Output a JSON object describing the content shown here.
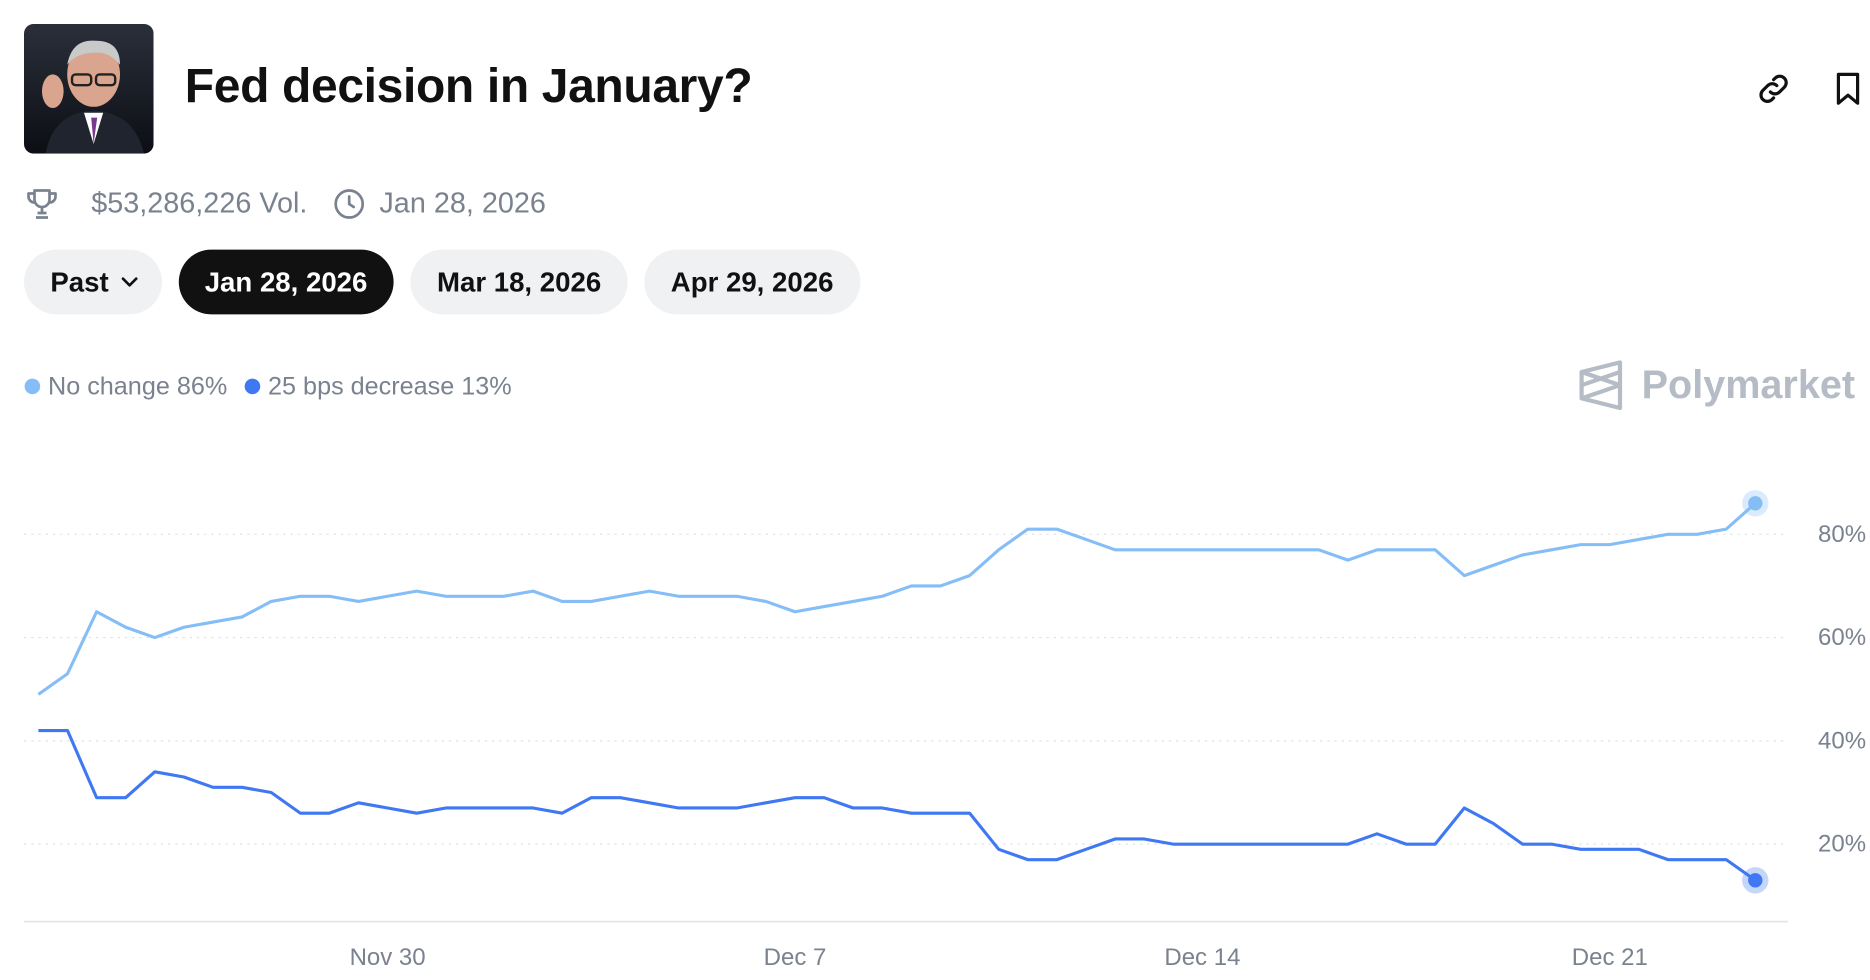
{
  "header": {
    "title": "Fed decision in January?",
    "volume": "$53,286,226 Vol.",
    "end_date": "Jan 28, 2026"
  },
  "tabs": [
    "Past",
    "Jan 28, 2026",
    "Mar 18, 2026",
    "Apr 29, 2026"
  ],
  "active_tab": 1,
  "brand": "Polymarket",
  "chart_data": {
    "type": "line",
    "categories": [
      null,
      null,
      null,
      null,
      null,
      null,
      null,
      null,
      null,
      null,
      null,
      null,
      "Nov 30",
      null,
      null,
      null,
      null,
      null,
      null,
      null,
      null,
      null,
      null,
      null,
      null,
      null,
      "Dec 7",
      null,
      null,
      null,
      null,
      null,
      null,
      null,
      null,
      null,
      null,
      null,
      null,
      null,
      "Dec 14",
      null,
      null,
      null,
      null,
      null,
      null,
      null,
      null,
      null,
      null,
      null,
      null,
      null,
      "Dec 21",
      null,
      null,
      null,
      null,
      null
    ],
    "series": [
      {
        "name": "No change 86%",
        "color": "#85bdf7",
        "values": [
          49,
          53,
          65,
          62,
          60,
          62,
          63,
          64,
          67,
          68,
          68,
          67,
          68,
          69,
          68,
          68,
          68,
          69,
          67,
          67,
          68,
          69,
          68,
          68,
          68,
          67,
          65,
          66,
          67,
          68,
          70,
          70,
          72,
          77,
          81,
          81,
          79,
          77,
          77,
          77,
          77,
          77,
          77,
          77,
          77,
          75,
          77,
          77,
          77,
          72,
          74,
          76,
          77,
          78,
          78,
          79,
          80,
          80,
          81,
          86
        ]
      },
      {
        "name": "25 bps decrease 13%",
        "color": "#3f78f2",
        "values": [
          42,
          42,
          29,
          29,
          34,
          33,
          31,
          31,
          30,
          26,
          26,
          28,
          27,
          26,
          27,
          27,
          27,
          27,
          26,
          29,
          29,
          28,
          27,
          27,
          27,
          28,
          29,
          29,
          27,
          27,
          26,
          26,
          26,
          19,
          17,
          17,
          19,
          21,
          21,
          20,
          20,
          20,
          20,
          20,
          20,
          20,
          22,
          20,
          20,
          27,
          24,
          20,
          20,
          19,
          19,
          19,
          17,
          17,
          17,
          13
        ]
      }
    ],
    "ylim": [
      5,
      94
    ],
    "yticks": [
      {
        "value": 20,
        "label": "20%"
      },
      {
        "value": 40,
        "label": "40%"
      },
      {
        "value": 60,
        "label": "60%"
      },
      {
        "value": 80,
        "label": "80%"
      }
    ],
    "grid": true
  }
}
